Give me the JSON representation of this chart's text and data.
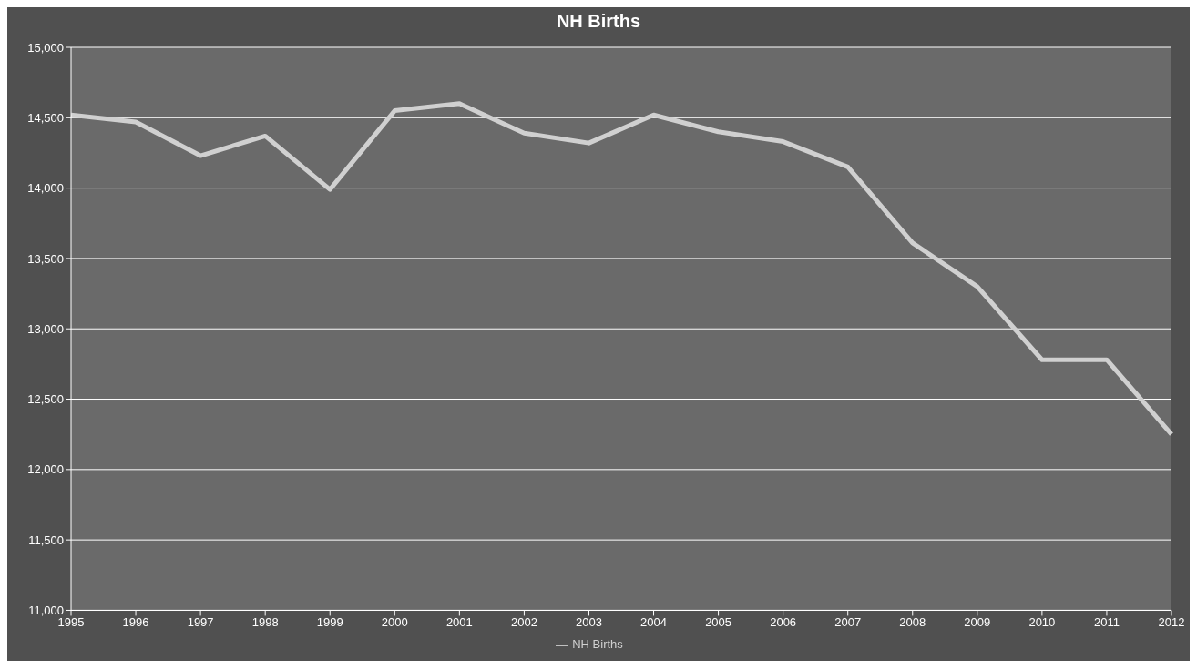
{
  "chart_data": {
    "type": "line",
    "title": "NH Births",
    "categories": [
      "1995",
      "1996",
      "1997",
      "1998",
      "1999",
      "2000",
      "2001",
      "2002",
      "2003",
      "2004",
      "2005",
      "2006",
      "2007",
      "2008",
      "2009",
      "2010",
      "2011",
      "2012"
    ],
    "series": [
      {
        "name": "NH Births",
        "color": "#d0d0d0",
        "values": [
          14520,
          14470,
          14230,
          14370,
          13990,
          14550,
          14600,
          14390,
          14320,
          14520,
          14400,
          14330,
          14150,
          13610,
          13300,
          12780,
          12780,
          12250
        ]
      }
    ],
    "ylim": [
      11000,
      15000
    ],
    "yticks": [
      {
        "value": 11000,
        "label": "11,000"
      },
      {
        "value": 11500,
        "label": "11,500"
      },
      {
        "value": 12000,
        "label": "12,000"
      },
      {
        "value": 12500,
        "label": "12,500"
      },
      {
        "value": 13000,
        "label": "13,000"
      },
      {
        "value": 13500,
        "label": "13,500"
      },
      {
        "value": 14000,
        "label": "14,000"
      },
      {
        "value": 14500,
        "label": "14,500"
      },
      {
        "value": 15000,
        "label": "15,000"
      }
    ],
    "grid": "y",
    "legend": "bottom",
    "marker": "none",
    "line_style": "solid"
  }
}
